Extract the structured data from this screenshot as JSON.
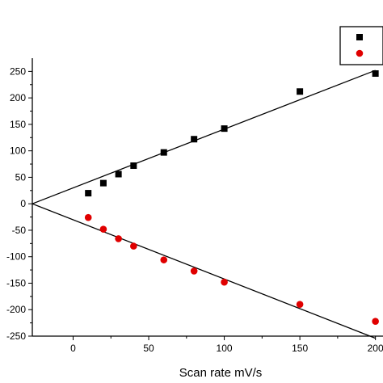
{
  "chart_data": {
    "type": "scatter",
    "xlabel": "Scan rate mV/s",
    "ylabel": "",
    "xlim": [
      -27,
      205
    ],
    "ylim": [
      -250,
      275
    ],
    "x_ticks": [
      0,
      50,
      100,
      150,
      200
    ],
    "y_ticks": [
      250,
      200,
      150,
      100,
      50,
      0,
      -50,
      -100,
      -150,
      -200,
      -250
    ],
    "grid": false,
    "legend": {
      "placement": "top-right",
      "entries": [
        "",
        ""
      ]
    },
    "series": [
      {
        "marker": "square",
        "color": "#000000",
        "x": [
          10,
          20,
          30,
          40,
          60,
          80,
          100,
          150,
          200
        ],
        "y": [
          20,
          39,
          56,
          72,
          97,
          122,
          142,
          212,
          246
        ]
      },
      {
        "marker": "circle",
        "color": "#e00000",
        "x": [
          10,
          20,
          30,
          40,
          60,
          80,
          100,
          150,
          200
        ],
        "y": [
          -26,
          -48,
          -66,
          -80,
          -106,
          -127,
          -148,
          -190,
          -222
        ]
      }
    ],
    "fit_lines": [
      {
        "color": "#000000",
        "from": [
          -27,
          0
        ],
        "to": [
          200,
          252
        ]
      },
      {
        "color": "#000000",
        "from": [
          -27,
          0
        ],
        "to": [
          200,
          -254
        ]
      }
    ]
  }
}
